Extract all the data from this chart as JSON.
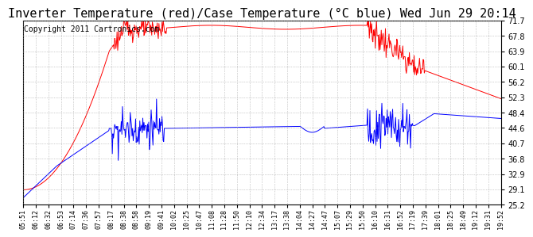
{
  "title": "Inverter Temperature (red)/Case Temperature (°C blue) Wed Jun 29 20:14",
  "copyright": "Copyright 2011 Cartronics.com",
  "yticks": [
    25.2,
    29.1,
    32.9,
    36.8,
    40.7,
    44.6,
    48.4,
    52.3,
    56.2,
    60.1,
    63.9,
    67.8,
    71.7
  ],
  "ylim": [
    25.2,
    71.7
  ],
  "xtick_labels": [
    "05:51",
    "06:12",
    "06:32",
    "06:53",
    "07:14",
    "07:36",
    "07:57",
    "08:17",
    "08:38",
    "08:58",
    "09:19",
    "09:41",
    "10:02",
    "10:25",
    "10:47",
    "11:08",
    "11:28",
    "11:50",
    "12:10",
    "12:34",
    "13:17",
    "13:38",
    "14:04",
    "14:27",
    "14:47",
    "15:07",
    "15:29",
    "15:50",
    "16:10",
    "16:31",
    "16:52",
    "17:19",
    "17:39",
    "18:01",
    "18:25",
    "18:49",
    "19:12",
    "19:31",
    "19:52"
  ],
  "background_color": "#ffffff",
  "grid_color": "#aaaaaa",
  "red_line_color": "#ff0000",
  "blue_line_color": "#0000ff",
  "title_fontsize": 11,
  "copyright_fontsize": 7
}
